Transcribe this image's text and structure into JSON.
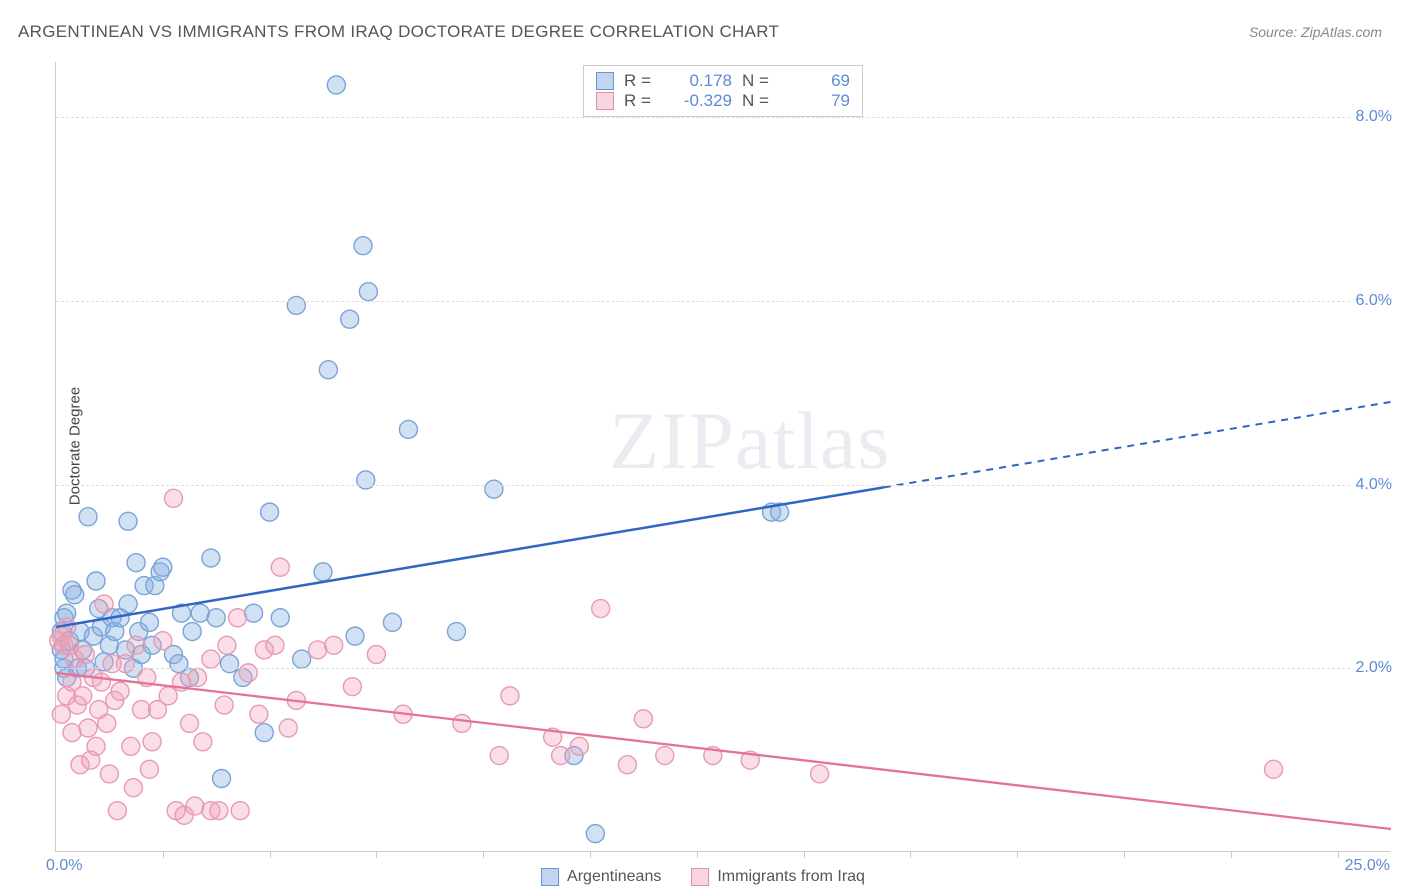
{
  "title": "ARGENTINEAN VS IMMIGRANTS FROM IRAQ DOCTORATE DEGREE CORRELATION CHART",
  "source": "Source: ZipAtlas.com",
  "y_axis_label": "Doctorate Degree",
  "watermark_a": "ZIP",
  "watermark_b": "atlas",
  "chart": {
    "type": "scatter",
    "xlim": [
      0,
      25
    ],
    "ylim": [
      0,
      8.6
    ],
    "x_origin_label": "0.0%",
    "x_max_label": "25.0%",
    "x_ticks": [
      2,
      4,
      6,
      8,
      10,
      12,
      14,
      16,
      18,
      20,
      22,
      24
    ],
    "y_gridlines": [
      {
        "v": 2.0,
        "label": "2.0%"
      },
      {
        "v": 4.0,
        "label": "4.0%"
      },
      {
        "v": 6.0,
        "label": "6.0%"
      },
      {
        "v": 8.0,
        "label": "8.0%"
      }
    ],
    "background_color": "#ffffff",
    "grid_color": "#dddddd",
    "marker_radius": 9,
    "marker_stroke_width": 1.4,
    "series": [
      {
        "name": "Argentineans",
        "legend_label": "Argentineans",
        "R_label": "R =",
        "R_value": "0.178",
        "N_label": "N =",
        "N_value": "69",
        "fill": "rgba(135,175,225,0.38)",
        "stroke": "#7aa3d8",
        "trend": {
          "color": "#2f66c4",
          "width": 2.5,
          "solid_end_x": 15.5,
          "y0": 2.45,
          "slope": 0.098
        },
        "points": [
          [
            0.1,
            2.2
          ],
          [
            0.1,
            2.4
          ],
          [
            0.15,
            2.55
          ],
          [
            0.15,
            2.0
          ],
          [
            0.15,
            2.1
          ],
          [
            0.2,
            1.9
          ],
          [
            0.2,
            2.6
          ],
          [
            0.25,
            2.3
          ],
          [
            0.3,
            2.85
          ],
          [
            0.35,
            2.8
          ],
          [
            0.4,
            2.0
          ],
          [
            0.45,
            2.4
          ],
          [
            0.5,
            2.2
          ],
          [
            0.55,
            2.0
          ],
          [
            0.6,
            3.65
          ],
          [
            0.7,
            2.35
          ],
          [
            0.75,
            2.95
          ],
          [
            0.8,
            2.65
          ],
          [
            0.85,
            2.45
          ],
          [
            0.9,
            2.07
          ],
          [
            1.0,
            2.25
          ],
          [
            1.05,
            2.55
          ],
          [
            1.1,
            2.4
          ],
          [
            1.2,
            2.55
          ],
          [
            1.3,
            2.2
          ],
          [
            1.35,
            2.7
          ],
          [
            1.35,
            3.6
          ],
          [
            1.45,
            2.0
          ],
          [
            1.5,
            3.15
          ],
          [
            1.55,
            2.4
          ],
          [
            1.6,
            2.15
          ],
          [
            1.65,
            2.9
          ],
          [
            1.75,
            2.5
          ],
          [
            1.8,
            2.25
          ],
          [
            1.85,
            2.9
          ],
          [
            1.95,
            3.05
          ],
          [
            2.0,
            3.1
          ],
          [
            2.2,
            2.15
          ],
          [
            2.3,
            2.05
          ],
          [
            2.35,
            2.6
          ],
          [
            2.5,
            1.9
          ],
          [
            2.55,
            2.4
          ],
          [
            2.7,
            2.6
          ],
          [
            2.9,
            3.2
          ],
          [
            3.0,
            2.55
          ],
          [
            3.1,
            0.8
          ],
          [
            3.25,
            2.05
          ],
          [
            3.5,
            1.9
          ],
          [
            3.7,
            2.6
          ],
          [
            3.9,
            1.3
          ],
          [
            4.0,
            3.7
          ],
          [
            4.2,
            2.55
          ],
          [
            4.5,
            5.95
          ],
          [
            4.6,
            2.1
          ],
          [
            5.0,
            3.05
          ],
          [
            5.1,
            5.25
          ],
          [
            5.25,
            8.35
          ],
          [
            5.5,
            5.8
          ],
          [
            5.6,
            2.35
          ],
          [
            5.75,
            6.6
          ],
          [
            5.8,
            4.05
          ],
          [
            5.85,
            6.1
          ],
          [
            6.3,
            2.5
          ],
          [
            6.6,
            4.6
          ],
          [
            7.5,
            2.4
          ],
          [
            8.2,
            3.95
          ],
          [
            9.7,
            1.05
          ],
          [
            10.1,
            0.2
          ],
          [
            13.4,
            3.7
          ],
          [
            13.55,
            3.7
          ]
        ]
      },
      {
        "name": "Immigrants from Iraq",
        "legend_label": "Immigrants from Iraq",
        "R_label": "R =",
        "R_value": "-0.329",
        "N_label": "N =",
        "N_value": "79",
        "fill": "rgba(240,160,185,0.36)",
        "stroke": "#e69bb2",
        "trend": {
          "color": "#e57394",
          "width": 2.3,
          "solid_end_x": 25,
          "y0": 1.95,
          "slope": -0.068
        },
        "points": [
          [
            0.05,
            2.3
          ],
          [
            0.1,
            2.35
          ],
          [
            0.1,
            1.5
          ],
          [
            0.15,
            2.25
          ],
          [
            0.2,
            1.7
          ],
          [
            0.2,
            2.45
          ],
          [
            0.25,
            2.25
          ],
          [
            0.3,
            1.85
          ],
          [
            0.3,
            1.3
          ],
          [
            0.35,
            2.1
          ],
          [
            0.4,
            1.6
          ],
          [
            0.45,
            0.95
          ],
          [
            0.5,
            1.7
          ],
          [
            0.55,
            2.15
          ],
          [
            0.6,
            1.35
          ],
          [
            0.65,
            1.0
          ],
          [
            0.7,
            1.9
          ],
          [
            0.75,
            1.15
          ],
          [
            0.8,
            1.55
          ],
          [
            0.85,
            1.85
          ],
          [
            0.9,
            2.7
          ],
          [
            0.95,
            1.4
          ],
          [
            1.0,
            0.85
          ],
          [
            1.05,
            2.05
          ],
          [
            1.1,
            1.65
          ],
          [
            1.15,
            0.45
          ],
          [
            1.2,
            1.75
          ],
          [
            1.3,
            2.05
          ],
          [
            1.4,
            1.15
          ],
          [
            1.45,
            0.7
          ],
          [
            1.5,
            2.25
          ],
          [
            1.6,
            1.55
          ],
          [
            1.7,
            1.9
          ],
          [
            1.75,
            0.9
          ],
          [
            1.8,
            1.2
          ],
          [
            1.9,
            1.55
          ],
          [
            2.0,
            2.3
          ],
          [
            2.1,
            1.7
          ],
          [
            2.2,
            3.85
          ],
          [
            2.25,
            0.45
          ],
          [
            2.35,
            1.85
          ],
          [
            2.4,
            0.4
          ],
          [
            2.5,
            1.4
          ],
          [
            2.6,
            0.5
          ],
          [
            2.65,
            1.9
          ],
          [
            2.75,
            1.2
          ],
          [
            2.9,
            2.1
          ],
          [
            2.9,
            0.45
          ],
          [
            3.05,
            0.45
          ],
          [
            3.15,
            1.6
          ],
          [
            3.2,
            2.25
          ],
          [
            3.4,
            2.55
          ],
          [
            3.45,
            0.45
          ],
          [
            3.6,
            1.95
          ],
          [
            3.8,
            1.5
          ],
          [
            3.9,
            2.2
          ],
          [
            4.1,
            2.25
          ],
          [
            4.2,
            3.1
          ],
          [
            4.35,
            1.35
          ],
          [
            4.5,
            1.65
          ],
          [
            4.9,
            2.2
          ],
          [
            5.2,
            2.25
          ],
          [
            5.55,
            1.8
          ],
          [
            6.0,
            2.15
          ],
          [
            6.5,
            1.5
          ],
          [
            7.6,
            1.4
          ],
          [
            8.3,
            1.05
          ],
          [
            8.5,
            1.7
          ],
          [
            9.3,
            1.25
          ],
          [
            9.45,
            1.05
          ],
          [
            10.2,
            2.65
          ],
          [
            10.7,
            0.95
          ],
          [
            11.0,
            1.45
          ],
          [
            11.4,
            1.05
          ],
          [
            12.3,
            1.05
          ],
          [
            13.0,
            1.0
          ],
          [
            14.3,
            0.85
          ],
          [
            22.8,
            0.9
          ],
          [
            9.8,
            1.15
          ]
        ]
      }
    ]
  }
}
